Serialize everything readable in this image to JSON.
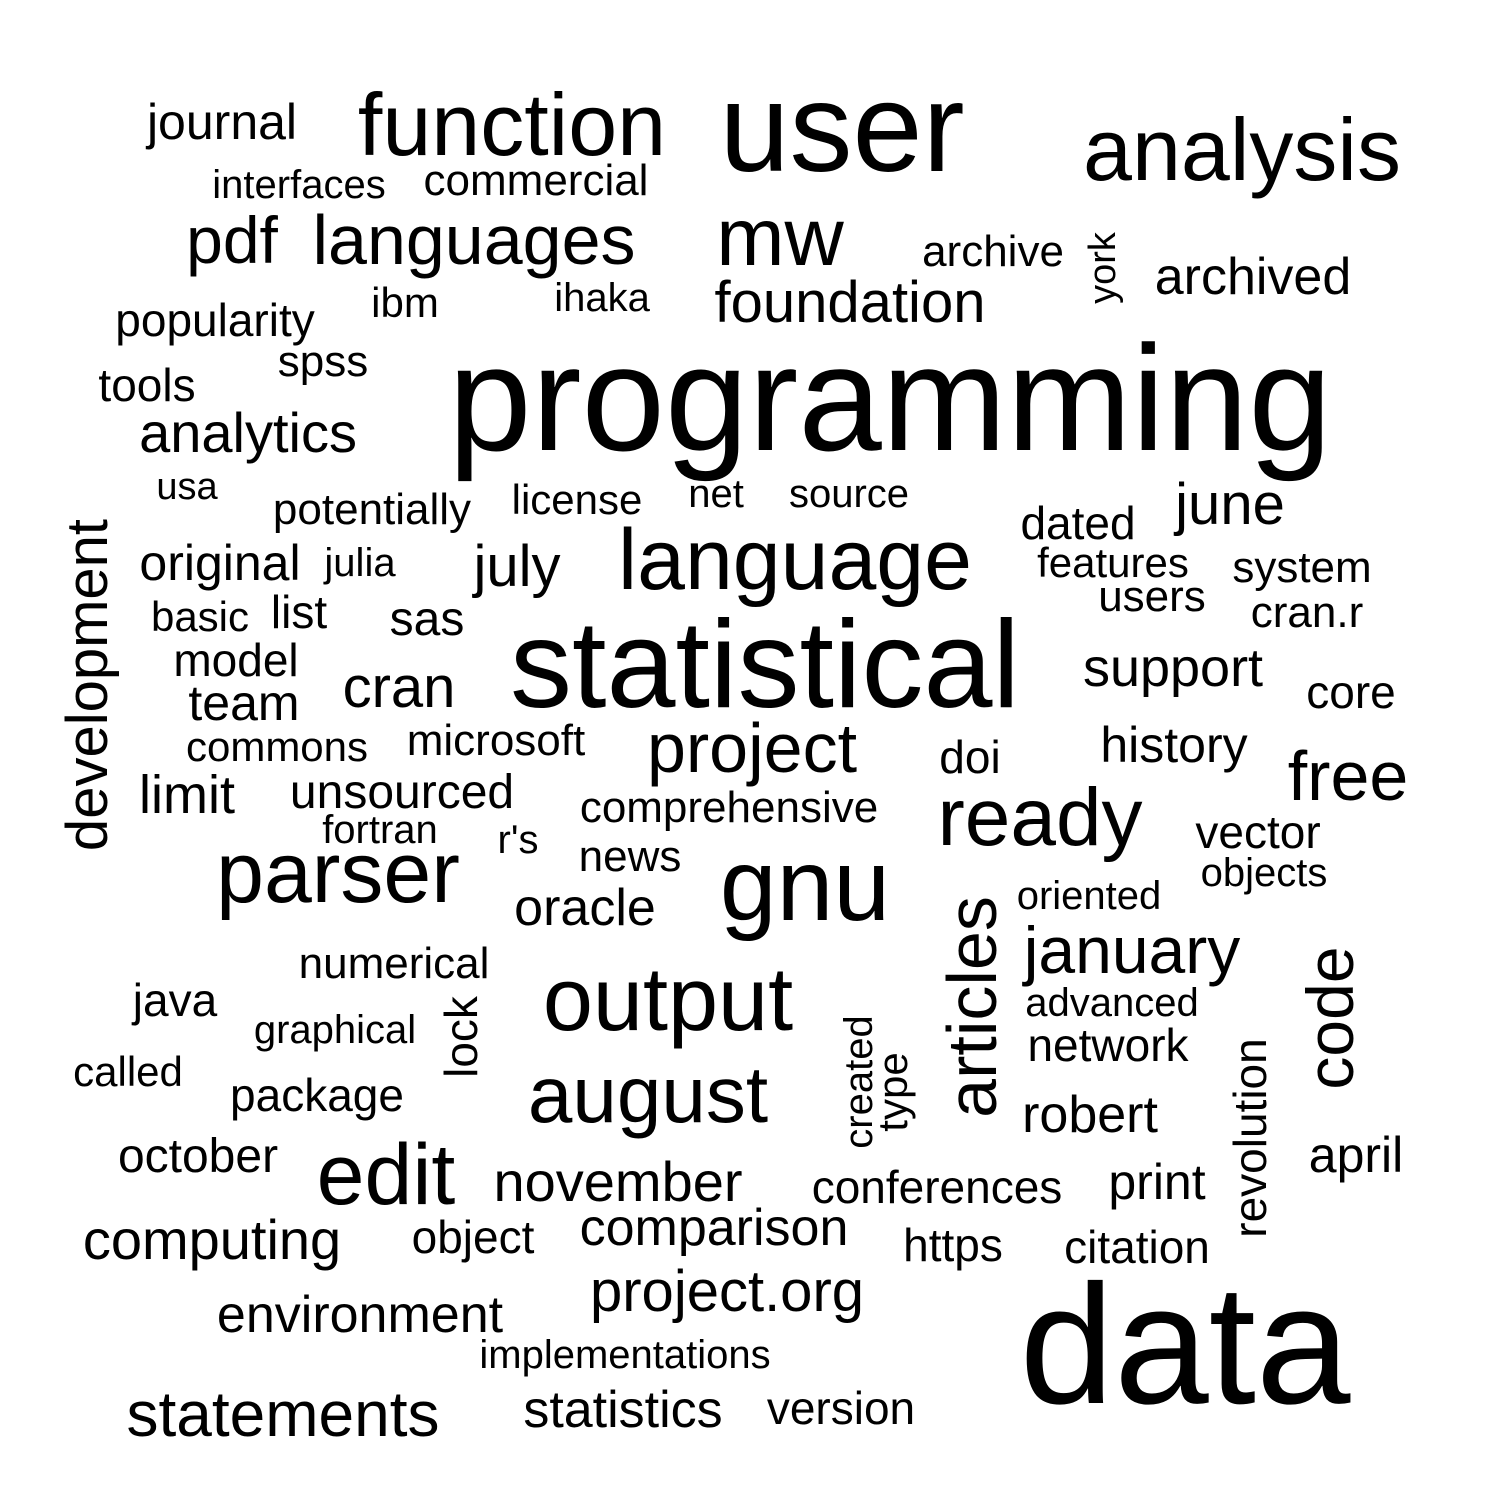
{
  "colors": {
    "background": "#ffffff",
    "text": "#000000"
  },
  "words": [
    {
      "t": "programming"
    },
    {
      "t": "data"
    },
    {
      "t": "statistical"
    },
    {
      "t": "user"
    },
    {
      "t": "language"
    },
    {
      "t": "output"
    },
    {
      "t": "gnu"
    },
    {
      "t": "function"
    },
    {
      "t": "analysis"
    },
    {
      "t": "parser"
    },
    {
      "t": "august"
    },
    {
      "t": "edit"
    },
    {
      "t": "project"
    },
    {
      "t": "ready"
    },
    {
      "t": "mw"
    },
    {
      "t": "languages"
    },
    {
      "t": "articles"
    },
    {
      "t": "free"
    },
    {
      "t": "january"
    },
    {
      "t": "code"
    },
    {
      "t": "development"
    },
    {
      "t": "foundation"
    },
    {
      "t": "statements"
    },
    {
      "t": "project.org"
    },
    {
      "t": "pdf"
    },
    {
      "t": "analytics"
    },
    {
      "t": "support"
    },
    {
      "t": "cran"
    },
    {
      "t": "july"
    },
    {
      "t": "june"
    },
    {
      "t": "computing"
    },
    {
      "t": "comparison"
    },
    {
      "t": "november"
    },
    {
      "t": "environment"
    },
    {
      "t": "archived"
    },
    {
      "t": "limit"
    },
    {
      "t": "history"
    },
    {
      "t": "journal"
    },
    {
      "t": "statistics"
    },
    {
      "t": "original"
    },
    {
      "t": "robert"
    },
    {
      "t": "conferences"
    },
    {
      "t": "october"
    },
    {
      "t": "unsourced"
    },
    {
      "t": "comprehensive"
    },
    {
      "t": "oracle"
    },
    {
      "t": "vector"
    },
    {
      "t": "network"
    },
    {
      "t": "print"
    },
    {
      "t": "april"
    },
    {
      "t": "version"
    },
    {
      "t": "popularity"
    },
    {
      "t": "archive"
    },
    {
      "t": "commercial"
    },
    {
      "t": "potentially"
    },
    {
      "t": "revolution"
    },
    {
      "t": "citation"
    },
    {
      "t": "lock"
    },
    {
      "t": "team"
    },
    {
      "t": "model"
    },
    {
      "t": "microsoft"
    },
    {
      "t": "dated"
    },
    {
      "t": "users"
    },
    {
      "t": "system"
    },
    {
      "t": "features"
    },
    {
      "t": "news"
    },
    {
      "t": "sas"
    },
    {
      "t": "core"
    },
    {
      "t": "https"
    },
    {
      "t": "object"
    },
    {
      "t": "tools"
    },
    {
      "t": "package"
    },
    {
      "t": "interfaces"
    },
    {
      "t": "commons"
    },
    {
      "t": "spss"
    },
    {
      "t": "source"
    },
    {
      "t": "license"
    },
    {
      "t": "cran.r"
    },
    {
      "t": "numerical"
    },
    {
      "t": "advanced"
    },
    {
      "t": "implementations"
    },
    {
      "t": "graphical"
    },
    {
      "t": "basic"
    },
    {
      "t": "java"
    },
    {
      "t": "doi"
    },
    {
      "t": "ibm"
    },
    {
      "t": "ihaka"
    },
    {
      "t": "list"
    },
    {
      "t": "type"
    },
    {
      "t": "created"
    },
    {
      "t": "york"
    },
    {
      "t": "fortran"
    },
    {
      "t": "oriented"
    },
    {
      "t": "objects"
    },
    {
      "t": "called"
    },
    {
      "t": "julia"
    },
    {
      "t": "net"
    },
    {
      "t": "r's"
    },
    {
      "t": "usa"
    }
  ]
}
